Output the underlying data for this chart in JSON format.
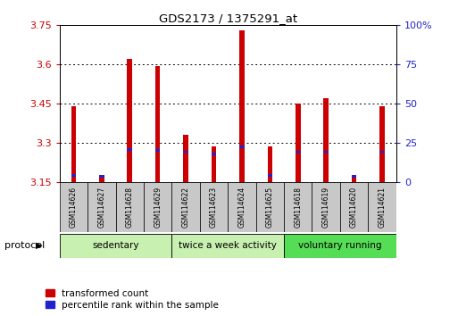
{
  "title": "GDS2173 / 1375291_at",
  "samples": [
    "GSM114626",
    "GSM114627",
    "GSM114628",
    "GSM114629",
    "GSM114622",
    "GSM114623",
    "GSM114624",
    "GSM114625",
    "GSM114618",
    "GSM114619",
    "GSM114620",
    "GSM114621"
  ],
  "red_values": [
    3.44,
    3.165,
    3.62,
    3.595,
    3.33,
    3.285,
    3.73,
    3.285,
    3.45,
    3.47,
    3.175,
    3.44
  ],
  "blue_values": [
    3.175,
    3.17,
    3.275,
    3.27,
    3.265,
    3.255,
    3.285,
    3.175,
    3.265,
    3.265,
    3.17,
    3.265
  ],
  "ylim_left": [
    3.15,
    3.75
  ],
  "ylim_right": [
    0,
    100
  ],
  "yticks_left": [
    3.15,
    3.3,
    3.45,
    3.6,
    3.75
  ],
  "ytick_labels_left": [
    "3.15",
    "3.3",
    "3.45",
    "3.6",
    "3.75"
  ],
  "yticks_right": [
    0,
    25,
    50,
    75,
    100
  ],
  "ytick_labels_right": [
    "0",
    "25",
    "50",
    "75",
    "100%"
  ],
  "bar_width": 0.18,
  "blue_bar_height": 0.01,
  "bar_base": 3.15,
  "red_color": "#cc0000",
  "blue_color": "#2222cc",
  "bg_color": "#ffffff",
  "tick_label_color_left": "#cc0000",
  "tick_label_color_right": "#2222cc",
  "legend_red": "transformed count",
  "legend_blue": "percentile rank within the sample",
  "protocol_label": "protocol",
  "sample_box_color": "#c8c8c8",
  "groups_def": [
    [
      0,
      3,
      "sedentary",
      "#c8f0b0"
    ],
    [
      4,
      7,
      "twice a week activity",
      "#c8f0b0"
    ],
    [
      8,
      11,
      "voluntary running",
      "#55dd55"
    ]
  ]
}
